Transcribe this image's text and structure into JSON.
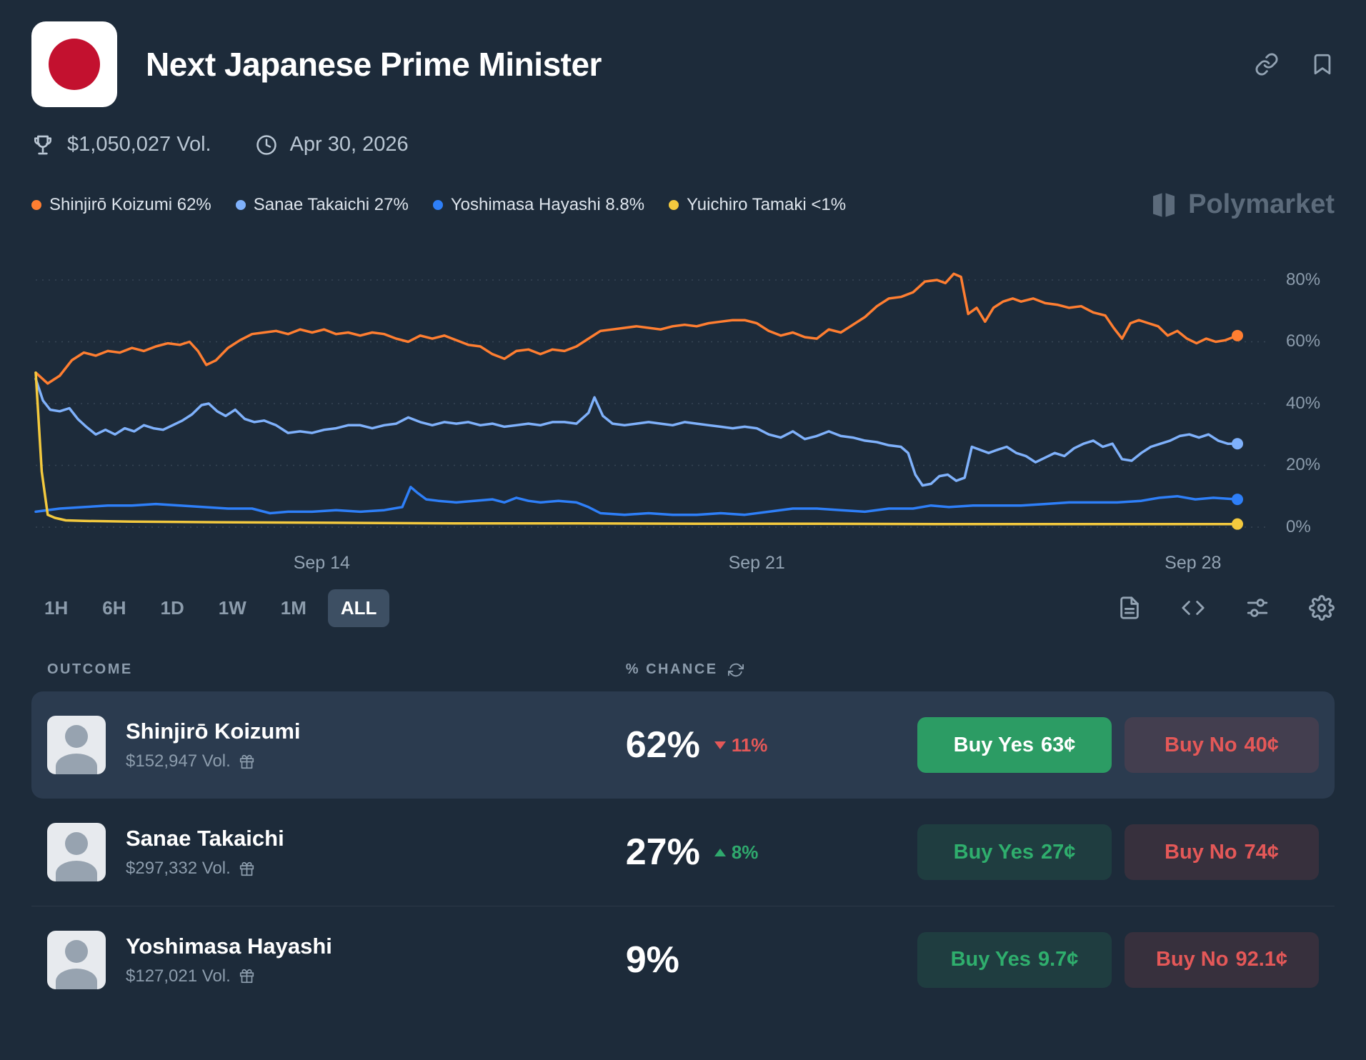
{
  "market": {
    "title": "Next Japanese Prime Minister",
    "volume": "$1,050,027 Vol.",
    "end_date": "Apr 30, 2026"
  },
  "watermark": "Polymarket",
  "legend": [
    {
      "label": "Shinjirō Koizumi 62%",
      "color": "#ff7e31"
    },
    {
      "label": "Sanae Takaichi 27%",
      "color": "#7fb1fb"
    },
    {
      "label": "Yoshimasa Hayashi 8.8%",
      "color": "#2e7ff8"
    },
    {
      "label": "Yuichiro Tamaki <1%",
      "color": "#f3c93e"
    }
  ],
  "time_ranges": [
    "1H",
    "6H",
    "1D",
    "1W",
    "1M",
    "ALL"
  ],
  "selected_range": "ALL",
  "chart_data": {
    "type": "line",
    "ylim": [
      0,
      86
    ],
    "yticks": [
      0,
      20,
      40,
      60,
      80
    ],
    "ytick_labels": [
      "0%",
      "20%",
      "40%",
      "60%",
      "80%"
    ],
    "x_axis_labels": [
      {
        "label": "Sep 14",
        "pos": 23.8
      },
      {
        "label": "Sep 21",
        "pos": 60.0
      },
      {
        "label": "Sep 28",
        "pos": 96.3
      }
    ],
    "series": [
      {
        "name": "Shinjirō Koizumi",
        "color": "#ff7e31",
        "points": [
          [
            0,
            50
          ],
          [
            1,
            46.5
          ],
          [
            2,
            49
          ],
          [
            3,
            54
          ],
          [
            4,
            56.5
          ],
          [
            5,
            55.5
          ],
          [
            6,
            57
          ],
          [
            7,
            56.5
          ],
          [
            8,
            58
          ],
          [
            9,
            57
          ],
          [
            10,
            58.5
          ],
          [
            11,
            59.5
          ],
          [
            12,
            59
          ],
          [
            12.8,
            60
          ],
          [
            13.5,
            57
          ],
          [
            14.2,
            52.5
          ],
          [
            15,
            54
          ],
          [
            16,
            58
          ],
          [
            17,
            60.5
          ],
          [
            18,
            62.5
          ],
          [
            19,
            63
          ],
          [
            20,
            63.5
          ],
          [
            21,
            62.5
          ],
          [
            22,
            64
          ],
          [
            23,
            63
          ],
          [
            24,
            64
          ],
          [
            25,
            62.5
          ],
          [
            26,
            63
          ],
          [
            27,
            62
          ],
          [
            28,
            63
          ],
          [
            29,
            62.5
          ],
          [
            30,
            61
          ],
          [
            31,
            60
          ],
          [
            32,
            62
          ],
          [
            33,
            61
          ],
          [
            34,
            62
          ],
          [
            35,
            60.5
          ],
          [
            36,
            59
          ],
          [
            37,
            58.5
          ],
          [
            38,
            56
          ],
          [
            39,
            54.5
          ],
          [
            40,
            57
          ],
          [
            41,
            57.5
          ],
          [
            42,
            56
          ],
          [
            43,
            57.5
          ],
          [
            44,
            57
          ],
          [
            45,
            58.5
          ],
          [
            46,
            61
          ],
          [
            47,
            63.5
          ],
          [
            48,
            64
          ],
          [
            49,
            64.5
          ],
          [
            50,
            65
          ],
          [
            51,
            64.5
          ],
          [
            52,
            64
          ],
          [
            53,
            65
          ],
          [
            54,
            65.5
          ],
          [
            55,
            65
          ],
          [
            56,
            66
          ],
          [
            57,
            66.5
          ],
          [
            58,
            67
          ],
          [
            59,
            67
          ],
          [
            60,
            66
          ],
          [
            61,
            63.5
          ],
          [
            62,
            62
          ],
          [
            63,
            63
          ],
          [
            64,
            61.5
          ],
          [
            65,
            61
          ],
          [
            66,
            64
          ],
          [
            67,
            63
          ],
          [
            68,
            65.5
          ],
          [
            69,
            68
          ],
          [
            70,
            71.5
          ],
          [
            71,
            74
          ],
          [
            72,
            74.5
          ],
          [
            73,
            76
          ],
          [
            74,
            79.5
          ],
          [
            75,
            80
          ],
          [
            75.7,
            79
          ],
          [
            76.4,
            82
          ],
          [
            77,
            81
          ],
          [
            77.6,
            69
          ],
          [
            78.3,
            71
          ],
          [
            79,
            66.5
          ],
          [
            79.7,
            71
          ],
          [
            80.5,
            73
          ],
          [
            81.3,
            74
          ],
          [
            82,
            73
          ],
          [
            83,
            74
          ],
          [
            84,
            72.5
          ],
          [
            85,
            72
          ],
          [
            86,
            71
          ],
          [
            87,
            71.5
          ],
          [
            88,
            69.5
          ],
          [
            89,
            68.5
          ],
          [
            89.7,
            64.5
          ],
          [
            90.4,
            61
          ],
          [
            91.1,
            66
          ],
          [
            91.8,
            67
          ],
          [
            92.6,
            66
          ],
          [
            93.4,
            65
          ],
          [
            94.2,
            62
          ],
          [
            95,
            63.5
          ],
          [
            95.8,
            61
          ],
          [
            96.6,
            59.5
          ],
          [
            97.4,
            61
          ],
          [
            98.2,
            60
          ],
          [
            99,
            60.5
          ],
          [
            100,
            62
          ]
        ]
      },
      {
        "name": "Sanae Takaichi",
        "color": "#7fb1fb",
        "points": [
          [
            0,
            48
          ],
          [
            0.6,
            41
          ],
          [
            1.2,
            38
          ],
          [
            2,
            37.5
          ],
          [
            2.8,
            38.5
          ],
          [
            3.5,
            35
          ],
          [
            4.2,
            32.5
          ],
          [
            5,
            30
          ],
          [
            5.8,
            31.5
          ],
          [
            6.6,
            30
          ],
          [
            7.4,
            32
          ],
          [
            8.2,
            31
          ],
          [
            9,
            33
          ],
          [
            9.8,
            32
          ],
          [
            10.6,
            31.5
          ],
          [
            11.4,
            33
          ],
          [
            12.2,
            34.5
          ],
          [
            13,
            36.5
          ],
          [
            13.8,
            39.5
          ],
          [
            14.4,
            40
          ],
          [
            15.1,
            37.5
          ],
          [
            15.8,
            36
          ],
          [
            16.6,
            38
          ],
          [
            17.4,
            35
          ],
          [
            18.2,
            34
          ],
          [
            19,
            34.5
          ],
          [
            20,
            33
          ],
          [
            21,
            30.5
          ],
          [
            22,
            31
          ],
          [
            23,
            30.5
          ],
          [
            24,
            31.5
          ],
          [
            25,
            32
          ],
          [
            26,
            33
          ],
          [
            27,
            33
          ],
          [
            28,
            32
          ],
          [
            29,
            33
          ],
          [
            30,
            33.5
          ],
          [
            31,
            35.5
          ],
          [
            32,
            34
          ],
          [
            33,
            33
          ],
          [
            34,
            34
          ],
          [
            35,
            33.5
          ],
          [
            36,
            34
          ],
          [
            37,
            33
          ],
          [
            38,
            33.5
          ],
          [
            39,
            32.5
          ],
          [
            40,
            33
          ],
          [
            41,
            33.5
          ],
          [
            42,
            33
          ],
          [
            43,
            34
          ],
          [
            44,
            34
          ],
          [
            45,
            33.5
          ],
          [
            46,
            37
          ],
          [
            46.5,
            42
          ],
          [
            47.2,
            36
          ],
          [
            48,
            33.5
          ],
          [
            49,
            33
          ],
          [
            50,
            33.5
          ],
          [
            51,
            34
          ],
          [
            52,
            33.5
          ],
          [
            53,
            33
          ],
          [
            54,
            34
          ],
          [
            55,
            33.5
          ],
          [
            56,
            33
          ],
          [
            57,
            32.5
          ],
          [
            58,
            32
          ],
          [
            59,
            32.5
          ],
          [
            60,
            32
          ],
          [
            61,
            30
          ],
          [
            62,
            29
          ],
          [
            63,
            31
          ],
          [
            64,
            28.5
          ],
          [
            65,
            29.5
          ],
          [
            66,
            31
          ],
          [
            67,
            29.5
          ],
          [
            68,
            29
          ],
          [
            69,
            28
          ],
          [
            70,
            27.5
          ],
          [
            71,
            26.5
          ],
          [
            72,
            26
          ],
          [
            72.6,
            24
          ],
          [
            73.2,
            17
          ],
          [
            73.8,
            13.5
          ],
          [
            74.5,
            14
          ],
          [
            75.2,
            16.5
          ],
          [
            75.9,
            17
          ],
          [
            76.6,
            15
          ],
          [
            77.3,
            16
          ],
          [
            77.9,
            26
          ],
          [
            78.6,
            25
          ],
          [
            79.3,
            24
          ],
          [
            80,
            25
          ],
          [
            80.8,
            26
          ],
          [
            81.6,
            24
          ],
          [
            82.4,
            23
          ],
          [
            83.2,
            21
          ],
          [
            84,
            22.5
          ],
          [
            84.8,
            24
          ],
          [
            85.6,
            23
          ],
          [
            86.4,
            25.5
          ],
          [
            87.2,
            27
          ],
          [
            88,
            28
          ],
          [
            88.8,
            26
          ],
          [
            89.6,
            27
          ],
          [
            90.4,
            22
          ],
          [
            91.2,
            21.5
          ],
          [
            92,
            24
          ],
          [
            92.8,
            26
          ],
          [
            93.6,
            27
          ],
          [
            94.4,
            28
          ],
          [
            95.2,
            29.5
          ],
          [
            96,
            30
          ],
          [
            96.8,
            29
          ],
          [
            97.6,
            30
          ],
          [
            98.4,
            28
          ],
          [
            99.2,
            27
          ],
          [
            100,
            27
          ]
        ]
      },
      {
        "name": "Yoshimasa Hayashi",
        "color": "#2e7ff8",
        "points": [
          [
            0,
            5
          ],
          [
            2,
            6
          ],
          [
            4,
            6.5
          ],
          [
            6,
            7
          ],
          [
            8,
            7
          ],
          [
            10,
            7.5
          ],
          [
            12,
            7
          ],
          [
            14,
            6.5
          ],
          [
            16,
            6
          ],
          [
            18,
            6
          ],
          [
            19.5,
            4.5
          ],
          [
            21,
            5
          ],
          [
            23,
            5
          ],
          [
            25,
            5.5
          ],
          [
            27,
            5
          ],
          [
            29,
            5.5
          ],
          [
            30.5,
            6.5
          ],
          [
            31.2,
            13
          ],
          [
            31.8,
            11
          ],
          [
            32.5,
            9
          ],
          [
            33.5,
            8.5
          ],
          [
            35,
            8
          ],
          [
            36.5,
            8.5
          ],
          [
            38,
            9
          ],
          [
            39,
            8
          ],
          [
            40,
            9.5
          ],
          [
            41,
            8.5
          ],
          [
            42,
            8
          ],
          [
            43.5,
            8.5
          ],
          [
            45,
            8
          ],
          [
            46,
            6.5
          ],
          [
            47,
            4.5
          ],
          [
            49,
            4
          ],
          [
            51,
            4.5
          ],
          [
            53,
            4
          ],
          [
            55,
            4
          ],
          [
            57,
            4.5
          ],
          [
            59,
            4
          ],
          [
            61,
            5
          ],
          [
            63,
            6
          ],
          [
            65,
            6
          ],
          [
            67,
            5.5
          ],
          [
            69,
            5
          ],
          [
            71,
            6
          ],
          [
            73,
            6
          ],
          [
            74.5,
            7
          ],
          [
            76,
            6.5
          ],
          [
            78,
            7
          ],
          [
            80,
            7
          ],
          [
            82,
            7
          ],
          [
            84,
            7.5
          ],
          [
            86,
            8
          ],
          [
            88,
            8
          ],
          [
            90,
            8
          ],
          [
            92,
            8.5
          ],
          [
            93.5,
            9.5
          ],
          [
            95,
            10
          ],
          [
            96.5,
            9
          ],
          [
            98,
            9.5
          ],
          [
            100,
            9
          ]
        ]
      },
      {
        "name": "Yuichiro Tamaki",
        "color": "#f3c93e",
        "points": [
          [
            0,
            50
          ],
          [
            0.5,
            18
          ],
          [
            1,
            4
          ],
          [
            1.6,
            3
          ],
          [
            2.5,
            2.2
          ],
          [
            4,
            2
          ],
          [
            8,
            1.8
          ],
          [
            15,
            1.6
          ],
          [
            25,
            1.4
          ],
          [
            35,
            1.2
          ],
          [
            45,
            1.2
          ],
          [
            55,
            1.1
          ],
          [
            65,
            1.1
          ],
          [
            75,
            1
          ],
          [
            85,
            1
          ],
          [
            95,
            1
          ],
          [
            100,
            1
          ]
        ]
      }
    ]
  },
  "table": {
    "outcome_header": "OUTCOME",
    "chance_header": "% CHANCE",
    "buy_yes_label": "Buy Yes",
    "buy_no_label": "Buy No",
    "rows": [
      {
        "name": "Shinjirō Koizumi",
        "volume": "$152,947 Vol.",
        "chance": "62%",
        "change": "11%",
        "change_direction": "down",
        "yes_price": "63¢",
        "no_price": "40¢"
      },
      {
        "name": "Sanae Takaichi",
        "volume": "$297,332 Vol.",
        "chance": "27%",
        "change": "8%",
        "change_direction": "up",
        "yes_price": "27¢",
        "no_price": "74¢"
      },
      {
        "name": "Yoshimasa Hayashi",
        "volume": "$127,021 Vol.",
        "chance": "9%",
        "change": "",
        "change_direction": "",
        "yes_price": "9.7¢",
        "no_price": "92.1¢"
      }
    ]
  }
}
